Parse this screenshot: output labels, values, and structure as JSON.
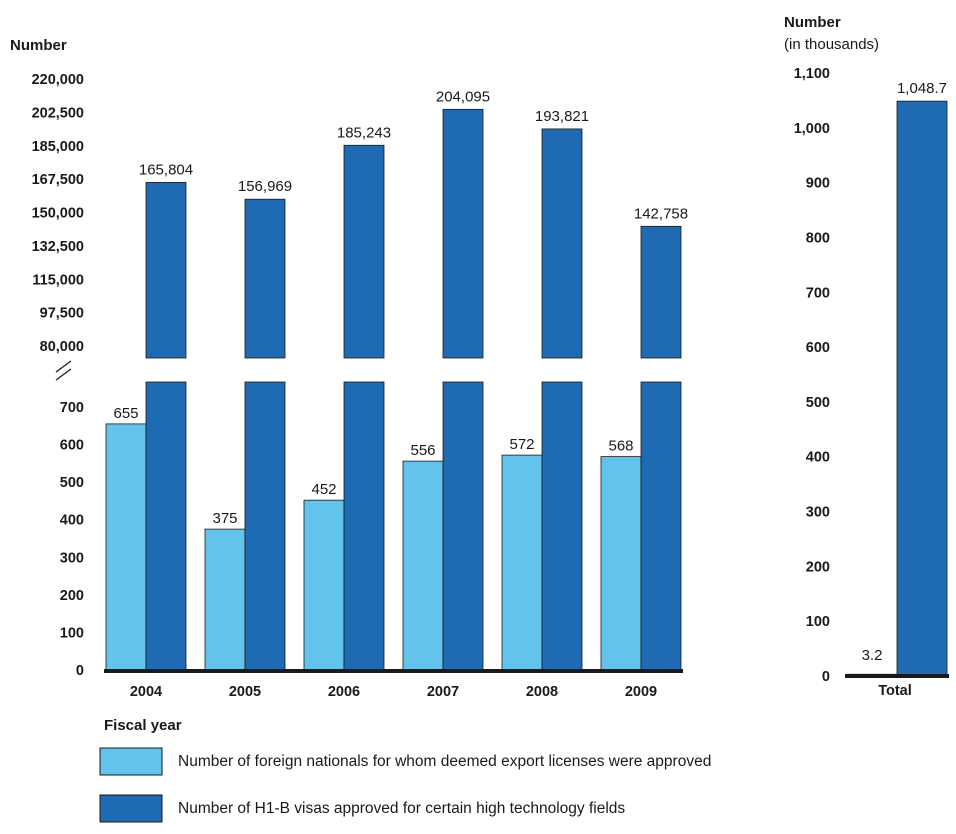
{
  "chart_data": [
    {
      "type": "bar",
      "ylabel": "Number",
      "xlabel": "Fiscal year",
      "categories": [
        "2004",
        "2005",
        "2006",
        "2007",
        "2008",
        "2009"
      ],
      "axis_break": true,
      "ylim_lower": [
        0,
        700
      ],
      "ylim_upper": [
        80000,
        220000
      ],
      "yticks_lower": [
        "0",
        "100",
        "200",
        "300",
        "400",
        "500",
        "600",
        "700"
      ],
      "yticks_upper": [
        "80,000",
        "97,500",
        "115,000",
        "132,500",
        "150,000",
        "167,500",
        "185,000",
        "202,500",
        "220,000"
      ],
      "series": [
        {
          "name": "Number of foreign nationals for whom deemed export licenses were approved",
          "color": "#62c4ec",
          "values": [
            655,
            375,
            452,
            556,
            572,
            568
          ],
          "labels": [
            "655",
            "375",
            "452",
            "556",
            "572",
            "568"
          ]
        },
        {
          "name": "Number of H1-B visas approved for certain high technology fields",
          "color": "#1f6bb3",
          "values": [
            165804,
            156969,
            185243,
            204095,
            193821,
            142758
          ],
          "labels": [
            "165,804",
            "156,969",
            "185,243",
            "204,095",
            "193,821",
            "142,758"
          ]
        }
      ]
    },
    {
      "type": "bar",
      "ylabel": "Number",
      "ylabel_sub": "(in thousands)",
      "categories": [
        "Total"
      ],
      "ylim": [
        0,
        1100
      ],
      "yticks": [
        "0",
        "100",
        "200",
        "300",
        "400",
        "500",
        "600",
        "700",
        "800",
        "900",
        "1,000",
        "1,100"
      ],
      "series": [
        {
          "name": "Number of foreign nationals for whom deemed export licenses were approved",
          "color": "#62c4ec",
          "values": [
            3.2
          ],
          "labels": [
            "3.2"
          ]
        },
        {
          "name": "Number of H1-B visas approved for certain high technology fields",
          "color": "#1f6bb3",
          "values": [
            1048.7
          ],
          "labels": [
            "1,048.7"
          ]
        }
      ]
    }
  ]
}
